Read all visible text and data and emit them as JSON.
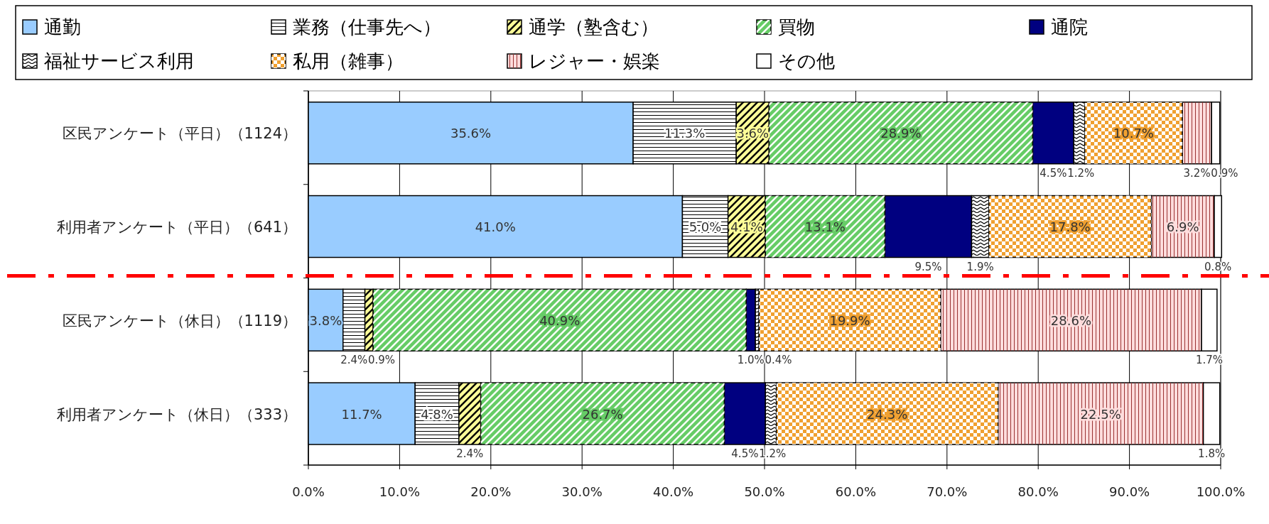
{
  "chart_data": {
    "type": "bar",
    "orientation": "horizontal",
    "stacked": true,
    "legend": "top",
    "grid": "x",
    "categories": [
      "区民アンケート（平日）（1124）",
      "利用者アンケート（平日）（641）",
      "区民アンケート（休日）（1119）",
      "利用者アンケート（休日）（333）"
    ],
    "xlim": [
      0,
      100
    ],
    "xticks": [
      {
        "value": 0,
        "label": "0.0%"
      },
      {
        "value": 10,
        "label": "10.0%"
      },
      {
        "value": 20,
        "label": "20.0%"
      },
      {
        "value": 30,
        "label": "30.0%"
      },
      {
        "value": 40,
        "label": "40.0%"
      },
      {
        "value": 50,
        "label": "50.0%"
      },
      {
        "value": 60,
        "label": "60.0%"
      },
      {
        "value": 70,
        "label": "70.0%"
      },
      {
        "value": 80,
        "label": "80.0%"
      },
      {
        "value": 90,
        "label": "90.0%"
      },
      {
        "value": 100,
        "label": "100.0%"
      }
    ],
    "series": [
      {
        "name": "通勤",
        "color": "#99ccff",
        "values": [
          35.6,
          41.0,
          3.8,
          11.7
        ],
        "value_labels": [
          "35.6%",
          "41.0%",
          "3.8%",
          "11.7%"
        ]
      },
      {
        "name": "業務（仕事先へ）",
        "color": "#ffffff",
        "values": [
          11.3,
          5.0,
          2.4,
          4.8
        ],
        "value_labels": [
          "11.3%",
          "5.0%",
          "2.4%",
          "4.8%"
        ]
      },
      {
        "name": "通学（塾含む）",
        "color": "#ffff99",
        "values": [
          3.6,
          4.1,
          0.9,
          2.4
        ],
        "value_labels": [
          "3.6%",
          "4.1%",
          "0.9%",
          "2.4%"
        ]
      },
      {
        "name": "買物",
        "color": "#66cc66",
        "values": [
          28.9,
          13.1,
          40.9,
          26.7
        ],
        "value_labels": [
          "28.9%",
          "13.1%",
          "40.9%",
          "26.7%"
        ]
      },
      {
        "name": "通院",
        "color": "#000080",
        "values": [
          4.5,
          9.5,
          1.0,
          4.5
        ],
        "value_labels": [
          "4.5%",
          "9.5%",
          "1.0%",
          "4.5%"
        ]
      },
      {
        "name": "福祉サービス利用",
        "color": "#ffffff",
        "values": [
          1.2,
          1.9,
          0.4,
          1.2
        ],
        "value_labels": [
          "1.2%",
          "1.9%",
          "0.4%",
          "1.2%"
        ]
      },
      {
        "name": "私用（雑事）",
        "color": "#f0a030",
        "values": [
          10.7,
          17.8,
          19.9,
          24.3
        ],
        "value_labels": [
          "10.7%",
          "17.8%",
          "19.9%",
          "24.3%"
        ]
      },
      {
        "name": "レジャー・娯楽",
        "color": "#ffdddd",
        "values": [
          3.2,
          6.9,
          28.6,
          22.5
        ],
        "value_labels": [
          "3.2%",
          "6.9%",
          "28.6%",
          "22.5%"
        ]
      },
      {
        "name": "その他",
        "color": "#ffffff",
        "values": [
          0.9,
          0.8,
          1.7,
          1.8
        ],
        "value_labels": [
          "0.9%",
          "0.8%",
          "1.7%",
          "1.8%"
        ]
      }
    ]
  }
}
